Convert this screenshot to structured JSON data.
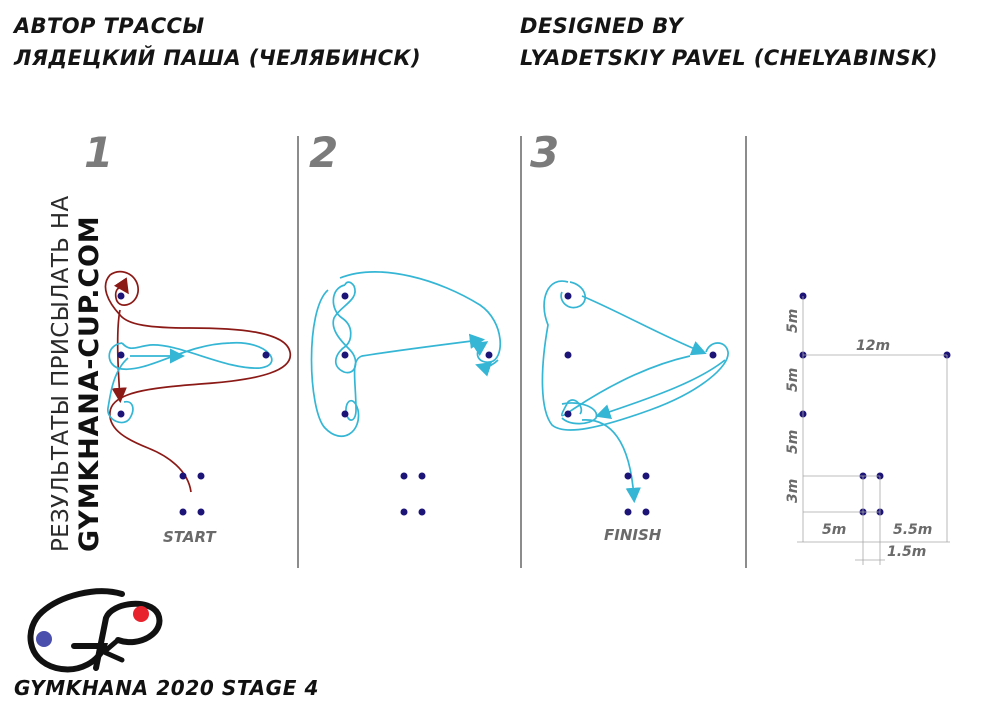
{
  "header": {
    "ru_line1": "АВТОР ТРАССЫ",
    "ru_line2": "ЛЯДЕЦКИЙ ПАША (ЧЕЛЯБИНСК)",
    "en_line1": "DESIGNED BY",
    "en_line2": "LYADETSKIY PAVEL (CHELYABINSK)"
  },
  "panels": [
    {
      "number": "1",
      "label": "START"
    },
    {
      "number": "2",
      "label": ""
    },
    {
      "number": "3",
      "label": "FINISH"
    }
  ],
  "side": {
    "line1": "РЕЗУЛЬТАТЫ ПРИСЫЛАТЬ НА",
    "line2": "GYMKHANA-CUP.COM"
  },
  "dimensions": {
    "d1": "5m",
    "d2": "5m",
    "d3": "5m",
    "d4": "3m",
    "top": "12m",
    "bottom_left": "5m",
    "bottom_right": "5.5m",
    "bottom_small": "1.5m"
  },
  "footer": {
    "title": "GYMKHANA 2020 STAGE 4"
  },
  "colors": {
    "cyan": "#35b6d4",
    "maroon": "#8b1a17",
    "cone": "#1c1477",
    "red_dot": "#e8232e",
    "blue_dot": "#4a4fae"
  }
}
